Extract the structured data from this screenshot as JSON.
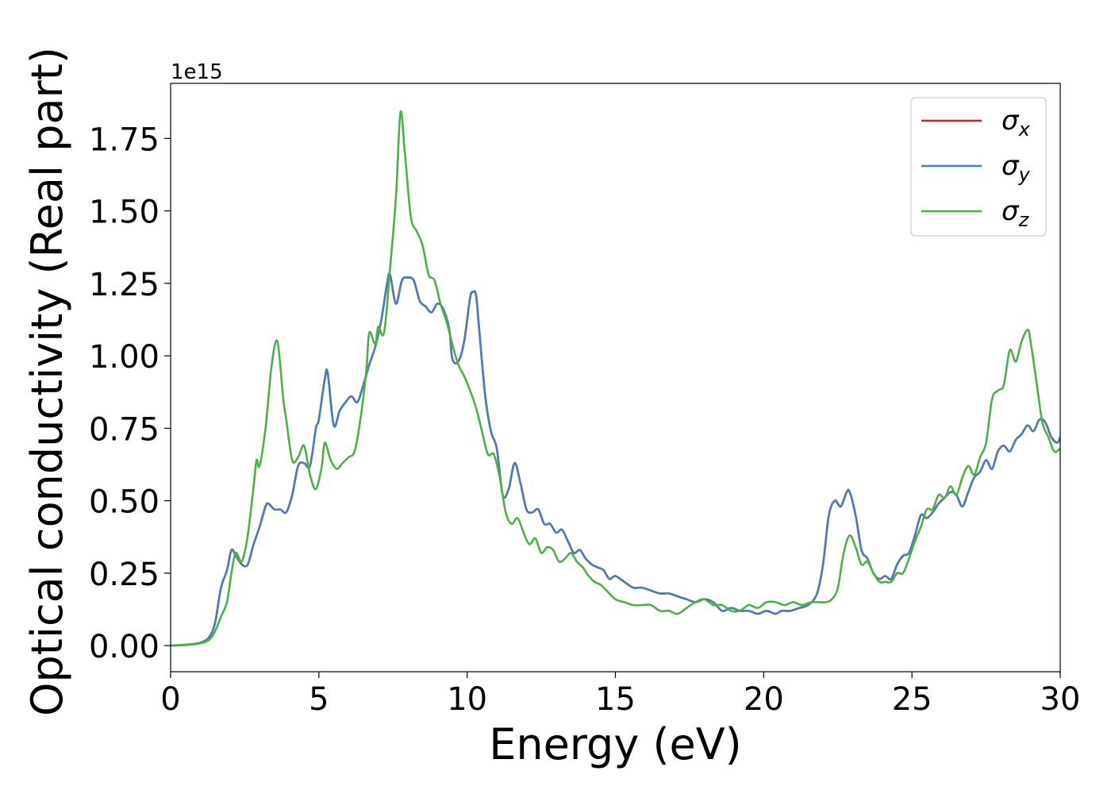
{
  "chart_data": {
    "type": "line",
    "title": "",
    "xlabel": "Energy (eV)",
    "ylabel": "Optical conductivity (Real part)",
    "offset_text": "1e15",
    "xlim": [
      0,
      30
    ],
    "ylim": [
      -0.09,
      1.94
    ],
    "x_ticks": [
      0,
      5,
      10,
      15,
      20,
      25,
      30
    ],
    "x_tick_labels": [
      "0",
      "5",
      "10",
      "15",
      "20",
      "25",
      "30"
    ],
    "y_ticks": [
      0,
      0.25,
      0.5,
      0.75,
      1.0,
      1.25,
      1.5,
      1.75
    ],
    "y_tick_labels": [
      "0.00",
      "0.25",
      "0.50",
      "0.75",
      "1.00",
      "1.25",
      "1.50",
      "1.75"
    ],
    "grid": false,
    "legend_position": "top-right",
    "series": [
      {
        "name": "σx",
        "legend_main": "σ",
        "legend_sub": "x",
        "color": "#e41a1c",
        "x": [
          0,
          0.5,
          1,
          1.3,
          1.5,
          1.7,
          1.9,
          2.05,
          2.2,
          2.4,
          2.6,
          2.8,
          3.0,
          3.2,
          3.3,
          3.5,
          3.7,
          3.9,
          4.1,
          4.3,
          4.5,
          4.7,
          4.9,
          5.0,
          5.2,
          5.3,
          5.5,
          5.7,
          5.9,
          6.1,
          6.3,
          6.5,
          6.7,
          6.9,
          7.1,
          7.3,
          7.4,
          7.6,
          7.8,
          8.0,
          8.2,
          8.4,
          8.6,
          8.8,
          9.0,
          9.2,
          9.4,
          9.5,
          9.7,
          9.9,
          10.1,
          10.2,
          10.3,
          10.4,
          10.6,
          10.8,
          11.0,
          11.2,
          11.4,
          11.6,
          11.8,
          12.0,
          12.2,
          12.4,
          12.6,
          12.8,
          13.0,
          13.2,
          13.4,
          13.6,
          13.8,
          14.0,
          14.2,
          14.4,
          14.6,
          14.8,
          15.0,
          15.3,
          15.6,
          15.9,
          16.2,
          16.5,
          16.8,
          17.1,
          17.4,
          17.7,
          18.0,
          18.3,
          18.6,
          18.9,
          19.2,
          19.5,
          19.8,
          20.1,
          20.4,
          20.6,
          20.9,
          21.2,
          21.5,
          21.8,
          22.0,
          22.2,
          22.4,
          22.6,
          22.8,
          22.9,
          23.1,
          23.3,
          23.5,
          23.7,
          23.9,
          24.1,
          24.3,
          24.5,
          24.7,
          24.9,
          25.1,
          25.3,
          25.5,
          25.7,
          25.9,
          26.1,
          26.3,
          26.5,
          26.7,
          26.9,
          27.1,
          27.3,
          27.5,
          27.7,
          27.9,
          28.1,
          28.3,
          28.5,
          28.7,
          28.9,
          29.1,
          29.3,
          29.5,
          29.7,
          29.9,
          30.0
        ],
        "y": [
          0,
          0.003,
          0.01,
          0.03,
          0.08,
          0.2,
          0.26,
          0.33,
          0.31,
          0.28,
          0.28,
          0.35,
          0.41,
          0.48,
          0.49,
          0.47,
          0.47,
          0.46,
          0.52,
          0.62,
          0.63,
          0.62,
          0.75,
          0.78,
          0.92,
          0.94,
          0.76,
          0.81,
          0.84,
          0.86,
          0.84,
          0.9,
          0.97,
          1.03,
          1.12,
          1.25,
          1.28,
          1.18,
          1.26,
          1.27,
          1.26,
          1.19,
          1.17,
          1.15,
          1.18,
          1.16,
          1.09,
          0.99,
          0.98,
          1.05,
          1.2,
          1.22,
          1.21,
          1.1,
          0.87,
          0.74,
          0.68,
          0.52,
          0.54,
          0.63,
          0.56,
          0.47,
          0.46,
          0.47,
          0.42,
          0.42,
          0.39,
          0.4,
          0.36,
          0.32,
          0.33,
          0.3,
          0.28,
          0.27,
          0.26,
          0.23,
          0.24,
          0.22,
          0.2,
          0.2,
          0.19,
          0.18,
          0.18,
          0.17,
          0.16,
          0.15,
          0.16,
          0.15,
          0.12,
          0.13,
          0.12,
          0.12,
          0.11,
          0.12,
          0.11,
          0.12,
          0.12,
          0.13,
          0.14,
          0.18,
          0.28,
          0.45,
          0.5,
          0.48,
          0.53,
          0.53,
          0.45,
          0.33,
          0.3,
          0.25,
          0.23,
          0.24,
          0.23,
          0.28,
          0.31,
          0.32,
          0.38,
          0.45,
          0.44,
          0.46,
          0.49,
          0.51,
          0.53,
          0.52,
          0.48,
          0.53,
          0.58,
          0.6,
          0.64,
          0.61,
          0.67,
          0.69,
          0.67,
          0.71,
          0.73,
          0.76,
          0.74,
          0.78,
          0.77,
          0.72,
          0.7,
          0.72
        ]
      },
      {
        "name": "σy",
        "legend_main": "σ",
        "legend_sub": "y",
        "color": "#4a7fb5",
        "x": [
          0,
          0.5,
          1,
          1.3,
          1.5,
          1.7,
          1.9,
          2.05,
          2.2,
          2.4,
          2.6,
          2.8,
          3.0,
          3.2,
          3.3,
          3.5,
          3.7,
          3.9,
          4.1,
          4.3,
          4.5,
          4.7,
          4.9,
          5.0,
          5.2,
          5.3,
          5.5,
          5.7,
          5.9,
          6.1,
          6.3,
          6.5,
          6.7,
          6.9,
          7.1,
          7.3,
          7.4,
          7.6,
          7.8,
          8.0,
          8.2,
          8.4,
          8.6,
          8.8,
          9.0,
          9.2,
          9.4,
          9.5,
          9.7,
          9.9,
          10.1,
          10.2,
          10.3,
          10.4,
          10.6,
          10.8,
          11.0,
          11.2,
          11.4,
          11.6,
          11.8,
          12.0,
          12.2,
          12.4,
          12.6,
          12.8,
          13.0,
          13.2,
          13.4,
          13.6,
          13.8,
          14.0,
          14.2,
          14.4,
          14.6,
          14.8,
          15.0,
          15.3,
          15.6,
          15.9,
          16.2,
          16.5,
          16.8,
          17.1,
          17.4,
          17.7,
          18.0,
          18.3,
          18.6,
          18.9,
          19.2,
          19.5,
          19.8,
          20.1,
          20.4,
          20.6,
          20.9,
          21.2,
          21.5,
          21.8,
          22.0,
          22.2,
          22.4,
          22.6,
          22.8,
          22.9,
          23.1,
          23.3,
          23.5,
          23.7,
          23.9,
          24.1,
          24.3,
          24.5,
          24.7,
          24.9,
          25.1,
          25.3,
          25.5,
          25.7,
          25.9,
          26.1,
          26.3,
          26.5,
          26.7,
          26.9,
          27.1,
          27.3,
          27.5,
          27.7,
          27.9,
          28.1,
          28.3,
          28.5,
          28.7,
          28.9,
          29.1,
          29.3,
          29.5,
          29.7,
          29.9,
          30.0
        ],
        "y": [
          0,
          0.003,
          0.01,
          0.03,
          0.08,
          0.2,
          0.26,
          0.33,
          0.31,
          0.28,
          0.28,
          0.35,
          0.41,
          0.48,
          0.49,
          0.47,
          0.47,
          0.46,
          0.52,
          0.62,
          0.63,
          0.62,
          0.75,
          0.78,
          0.92,
          0.94,
          0.76,
          0.81,
          0.84,
          0.86,
          0.84,
          0.9,
          0.97,
          1.03,
          1.12,
          1.25,
          1.28,
          1.18,
          1.26,
          1.27,
          1.26,
          1.19,
          1.17,
          1.15,
          1.18,
          1.16,
          1.09,
          0.99,
          0.98,
          1.05,
          1.2,
          1.22,
          1.21,
          1.1,
          0.87,
          0.74,
          0.68,
          0.52,
          0.54,
          0.63,
          0.56,
          0.47,
          0.46,
          0.47,
          0.42,
          0.42,
          0.39,
          0.4,
          0.36,
          0.32,
          0.33,
          0.3,
          0.28,
          0.27,
          0.26,
          0.23,
          0.24,
          0.22,
          0.2,
          0.2,
          0.19,
          0.18,
          0.18,
          0.17,
          0.16,
          0.15,
          0.16,
          0.15,
          0.12,
          0.13,
          0.12,
          0.12,
          0.11,
          0.12,
          0.11,
          0.12,
          0.12,
          0.13,
          0.14,
          0.18,
          0.28,
          0.45,
          0.5,
          0.48,
          0.53,
          0.53,
          0.45,
          0.33,
          0.3,
          0.25,
          0.23,
          0.24,
          0.23,
          0.28,
          0.31,
          0.32,
          0.38,
          0.45,
          0.44,
          0.46,
          0.49,
          0.51,
          0.53,
          0.52,
          0.48,
          0.53,
          0.58,
          0.6,
          0.64,
          0.61,
          0.67,
          0.69,
          0.67,
          0.71,
          0.73,
          0.76,
          0.74,
          0.78,
          0.77,
          0.72,
          0.7,
          0.72
        ]
      },
      {
        "name": "σz",
        "legend_main": "σ",
        "legend_sub": "z",
        "color": "#4daf4a",
        "x": [
          0,
          0.5,
          1,
          1.3,
          1.5,
          1.7,
          1.9,
          2.05,
          2.2,
          2.4,
          2.6,
          2.8,
          2.9,
          3.0,
          3.2,
          3.4,
          3.6,
          3.8,
          3.9,
          4.1,
          4.3,
          4.5,
          4.7,
          4.9,
          5.1,
          5.2,
          5.4,
          5.6,
          5.8,
          6.0,
          6.2,
          6.4,
          6.6,
          6.7,
          6.9,
          7.0,
          7.2,
          7.4,
          7.6,
          7.75,
          7.9,
          8.1,
          8.3,
          8.5,
          8.7,
          8.9,
          9.1,
          9.3,
          9.5,
          9.7,
          9.9,
          10.1,
          10.3,
          10.5,
          10.7,
          10.9,
          11.1,
          11.3,
          11.5,
          11.7,
          11.9,
          12.1,
          12.3,
          12.5,
          12.7,
          12.9,
          13.1,
          13.3,
          13.5,
          13.7,
          13.9,
          14.1,
          14.3,
          14.5,
          14.7,
          15.0,
          15.3,
          15.6,
          15.9,
          16.2,
          16.5,
          16.8,
          17.1,
          17.4,
          17.7,
          18.0,
          18.3,
          18.6,
          18.9,
          19.2,
          19.5,
          19.8,
          20.1,
          20.4,
          20.7,
          21.0,
          21.3,
          21.6,
          21.9,
          22.1,
          22.3,
          22.5,
          22.7,
          22.9,
          23.1,
          23.3,
          23.5,
          23.7,
          23.9,
          24.1,
          24.3,
          24.5,
          24.7,
          24.9,
          25.1,
          25.3,
          25.5,
          25.7,
          25.9,
          26.1,
          26.3,
          26.5,
          26.7,
          26.9,
          27.1,
          27.3,
          27.5,
          27.7,
          27.9,
          28.1,
          28.3,
          28.5,
          28.7,
          28.9,
          29.0,
          29.2,
          29.4,
          29.6,
          29.8,
          30.0
        ],
        "y": [
          0,
          0.002,
          0.008,
          0.02,
          0.05,
          0.1,
          0.15,
          0.25,
          0.32,
          0.29,
          0.38,
          0.55,
          0.64,
          0.62,
          0.75,
          0.96,
          1.05,
          0.85,
          0.78,
          0.64,
          0.65,
          0.69,
          0.59,
          0.54,
          0.62,
          0.7,
          0.64,
          0.61,
          0.63,
          0.65,
          0.67,
          0.78,
          0.95,
          1.08,
          1.04,
          1.1,
          1.08,
          1.3,
          1.55,
          1.84,
          1.7,
          1.48,
          1.43,
          1.38,
          1.28,
          1.26,
          1.18,
          1.12,
          1.04,
          0.97,
          0.93,
          0.88,
          0.82,
          0.74,
          0.66,
          0.66,
          0.58,
          0.46,
          0.42,
          0.44,
          0.39,
          0.35,
          0.37,
          0.32,
          0.34,
          0.33,
          0.29,
          0.3,
          0.32,
          0.29,
          0.27,
          0.24,
          0.22,
          0.21,
          0.19,
          0.16,
          0.15,
          0.14,
          0.14,
          0.14,
          0.12,
          0.12,
          0.11,
          0.13,
          0.15,
          0.16,
          0.14,
          0.14,
          0.12,
          0.12,
          0.14,
          0.13,
          0.15,
          0.15,
          0.14,
          0.15,
          0.14,
          0.15,
          0.15,
          0.15,
          0.16,
          0.2,
          0.32,
          0.38,
          0.34,
          0.28,
          0.29,
          0.25,
          0.22,
          0.22,
          0.22,
          0.25,
          0.25,
          0.3,
          0.36,
          0.41,
          0.47,
          0.47,
          0.52,
          0.51,
          0.55,
          0.52,
          0.58,
          0.62,
          0.59,
          0.65,
          0.7,
          0.85,
          0.88,
          0.9,
          1.02,
          0.98,
          1.05,
          1.09,
          1.05,
          0.91,
          0.77,
          0.72,
          0.67,
          0.68
        ]
      }
    ]
  }
}
